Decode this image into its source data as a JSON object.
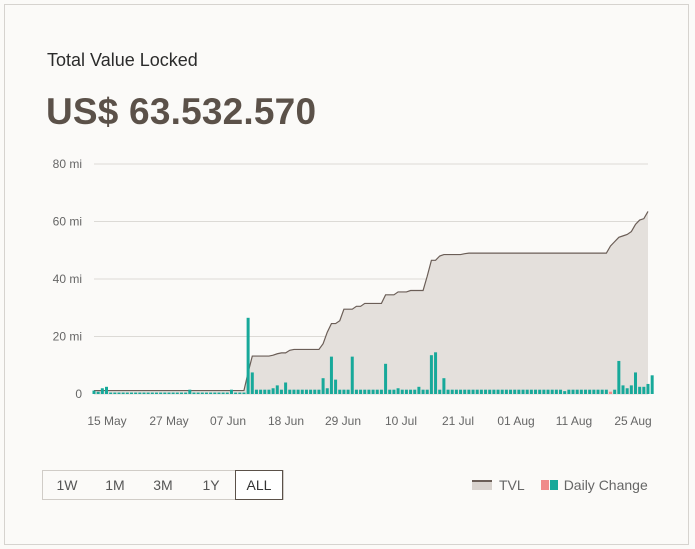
{
  "header": {
    "title": "Total Value Locked",
    "value": "US$ 63.532.570"
  },
  "range_buttons": [
    {
      "label": "1W",
      "active": false
    },
    {
      "label": "1M",
      "active": false
    },
    {
      "label": "3M",
      "active": false
    },
    {
      "label": "1Y",
      "active": false
    },
    {
      "label": "ALL",
      "active": true
    }
  ],
  "legend": {
    "tvl_label": "TVL",
    "daily_label": "Daily Change"
  },
  "colors": {
    "tvl_fill": "#e4e0dc",
    "tvl_line": "#6b5e57",
    "positive_bar": "#17a99a",
    "negative_bar": "#f08a8a",
    "grid": "#dcdad6"
  },
  "chart_data": {
    "type": "area",
    "x_tick_labels": [
      "15 May",
      "27 May",
      "07 Jun",
      "18 Jun",
      "29 Jun",
      "10 Jul",
      "21 Jul",
      "01 Aug",
      "11 Aug",
      "25 Aug"
    ],
    "y_tick_labels": [
      "0",
      "20 mi",
      "40 mi",
      "60 mi",
      "80 mi"
    ],
    "ylim": [
      0,
      80
    ],
    "unit": "mi",
    "series": [
      {
        "name": "TVL",
        "values": [
          1.2,
          1.2,
          1.2,
          1.2,
          1.2,
          1.2,
          1.2,
          1.2,
          1.2,
          1.2,
          1.2,
          1.2,
          1.2,
          1.2,
          1.2,
          1.2,
          1.2,
          1.2,
          1.2,
          1.2,
          1.2,
          1.2,
          1.2,
          1.2,
          1.2,
          1.2,
          1.2,
          1.2,
          1.2,
          1.2,
          1.2,
          1.2,
          1.2,
          1.2,
          1.2,
          1.2,
          1.2,
          7.5,
          13.2,
          13.2,
          13.2,
          13.2,
          13.2,
          13.5,
          14.0,
          14.3,
          14.3,
          15.2,
          15.5,
          15.5,
          15.5,
          15.5,
          15.5,
          15.5,
          15.5,
          17.5,
          21.5,
          24.5,
          24.5,
          25.5,
          29.5,
          29.5,
          29.5,
          30.5,
          30.5,
          31.5,
          31.5,
          31.5,
          31.5,
          31.5,
          34.5,
          34.5,
          34.5,
          35.5,
          35.5,
          35.5,
          36.0,
          36.0,
          36.0,
          36.0,
          41.0,
          46.5,
          46.5,
          48.0,
          48.5,
          48.5,
          48.5,
          48.5,
          48.5,
          48.8,
          49.0,
          49.0,
          49.0,
          49.0,
          49.0,
          49.0,
          49.0,
          49.0,
          49.0,
          49.0,
          49.0,
          49.0,
          49.0,
          49.0,
          49.0,
          49.0,
          49.0,
          49.0,
          49.0,
          49.0,
          49.0,
          49.0,
          49.0,
          49.0,
          49.0,
          49.0,
          49.0,
          49.0,
          49.0,
          49.0,
          49.0,
          49.0,
          49.0,
          49.0,
          51.5,
          53.0,
          54.5,
          55.0,
          55.5,
          56.5,
          59.0,
          60.5,
          61.0,
          63.5
        ]
      },
      {
        "name": "Daily Change",
        "values": [
          1.2,
          0.8,
          2.0,
          2.5,
          0.5,
          0.5,
          0.5,
          0.5,
          0.5,
          0.5,
          0.5,
          0.5,
          0.5,
          0.5,
          0.5,
          0.5,
          0.5,
          0.5,
          0.5,
          0.5,
          0.5,
          0.5,
          0.5,
          1.5,
          0.5,
          0.5,
          0.5,
          0.5,
          0.5,
          0.5,
          0.5,
          0.5,
          0.5,
          1.5,
          0.5,
          0.5,
          0.5,
          26.5,
          7.5,
          1.5,
          1.5,
          1.5,
          1.5,
          2.0,
          3.0,
          1.5,
          4.0,
          1.5,
          1.5,
          1.5,
          1.5,
          1.5,
          1.5,
          1.5,
          1.5,
          5.5,
          2.0,
          13.0,
          5.0,
          1.5,
          1.5,
          1.5,
          13.0,
          1.5,
          1.5,
          1.5,
          1.5,
          1.5,
          1.5,
          1.5,
          10.5,
          1.5,
          1.5,
          2.0,
          1.5,
          1.5,
          1.5,
          1.5,
          2.5,
          1.5,
          1.5,
          13.5,
          14.5,
          1.5,
          5.5,
          1.5,
          1.5,
          1.5,
          1.5,
          1.5,
          1.5,
          1.5,
          1.5,
          1.5,
          1.5,
          1.5,
          1.5,
          1.5,
          1.5,
          1.5,
          1.5,
          1.5,
          1.5,
          1.5,
          1.5,
          1.5,
          1.5,
          1.5,
          1.5,
          1.5,
          1.5,
          1.5,
          1.5,
          1.0,
          1.5,
          1.5,
          1.5,
          1.5,
          1.5,
          1.5,
          1.5,
          1.5,
          1.5,
          1.5,
          -0.8,
          1.5,
          11.5,
          3.0,
          2.0,
          3.0,
          7.5,
          2.5,
          2.5,
          3.5,
          6.5
        ]
      }
    ]
  }
}
